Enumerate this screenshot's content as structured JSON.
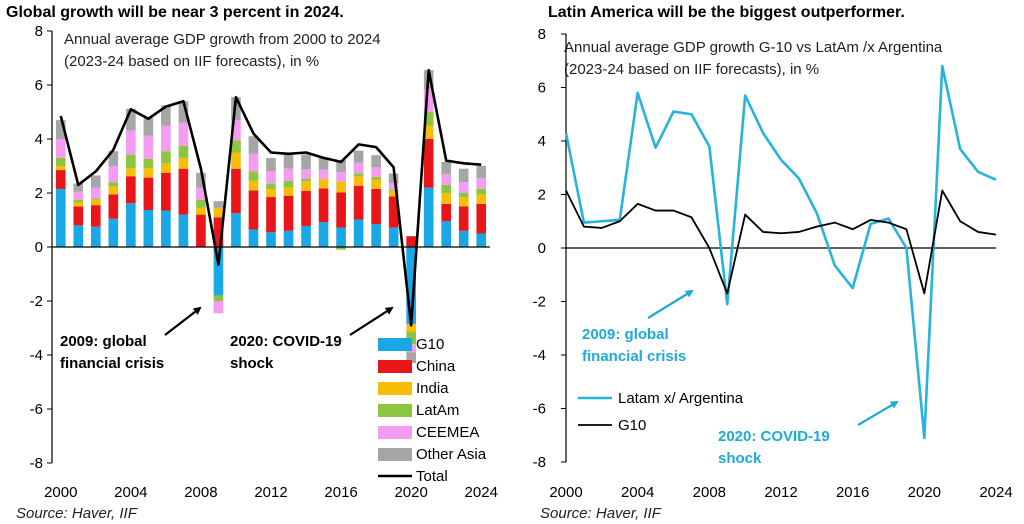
{
  "colors": {
    "g10": "#1AA7E6",
    "china": "#E8161A",
    "india": "#F7BE09",
    "latam": "#8CC63F",
    "ceemea": "#F39CF2",
    "other_asia": "#A6A6A6",
    "total": "#000000",
    "latam_line": "#27B3DB",
    "g10_line": "#000000",
    "right_annotation": "#1FA9D6"
  },
  "left": {
    "title": "Global growth will be near 3 percent in 2024.",
    "subtitle_1": "Annual average  GDP growth from 2000 to 2024",
    "subtitle_2": "(2023-24 based on IIF forecasts),  in %",
    "source": "Source: Haver, IIF",
    "annotation_gfc": [
      "2009: global",
      "financial crisis"
    ],
    "annotation_covid": [
      "2020: COVID-19",
      "shock"
    ]
  },
  "right": {
    "title": "Latin America will be the biggest outperformer.",
    "subtitle_1": "Annual average GDP growth G-10 vs LatAm /x Argentina",
    "subtitle_2": "(2023-24 based on IIF forecasts), in %",
    "source": "Source: Haver, IIF",
    "annotation_gfc": [
      "2009: global",
      "financial crisis"
    ],
    "annotation_covid": [
      "2020: COVID-19",
      "shock"
    ]
  },
  "chart_data": [
    {
      "type": "bar",
      "stacked": true,
      "title": "Global growth will be near 3 percent in 2024.",
      "x": [
        2000,
        2001,
        2002,
        2003,
        2004,
        2005,
        2006,
        2007,
        2008,
        2009,
        2010,
        2011,
        2012,
        2013,
        2014,
        2015,
        2016,
        2017,
        2018,
        2019,
        2020,
        2021,
        2022,
        2023,
        2024
      ],
      "x_tick_labels": [
        "2000",
        "2004",
        "2008",
        "2012",
        "2016",
        "2020",
        "2024"
      ],
      "y_ticks": [
        -8,
        -6,
        -4,
        -2,
        0,
        2,
        4,
        6,
        8
      ],
      "ylim": [
        -8,
        8
      ],
      "legend_position": "bottom-right",
      "series": [
        {
          "name": "G10",
          "color_key": "g10",
          "values": [
            2.15,
            0.8,
            0.75,
            1.05,
            1.62,
            1.37,
            1.35,
            1.2,
            0.0,
            -1.8,
            1.25,
            0.65,
            0.55,
            0.6,
            0.78,
            0.92,
            0.72,
            1.02,
            0.85,
            0.72,
            -2.85,
            2.2,
            0.95,
            0.6,
            0.5
          ]
        },
        {
          "name": "China",
          "color_key": "china",
          "values": [
            0.7,
            0.7,
            0.8,
            0.9,
            1.0,
            1.2,
            1.4,
            1.7,
            1.2,
            1.1,
            1.65,
            1.45,
            1.3,
            1.3,
            1.3,
            1.25,
            1.3,
            1.25,
            1.3,
            1.15,
            0.4,
            1.8,
            0.65,
            0.9,
            1.1
          ]
        },
        {
          "name": "India",
          "color_key": "india",
          "values": [
            0.15,
            0.15,
            0.2,
            0.3,
            0.3,
            0.35,
            0.35,
            0.4,
            0.25,
            0.35,
            0.6,
            0.35,
            0.3,
            0.3,
            0.35,
            0.35,
            0.4,
            0.35,
            0.35,
            0.2,
            -0.3,
            0.5,
            0.4,
            0.35,
            0.35
          ]
        },
        {
          "name": "LatAm",
          "color_key": "latam",
          "values": [
            0.3,
            0.1,
            0.05,
            0.15,
            0.5,
            0.35,
            0.45,
            0.45,
            0.3,
            -0.2,
            0.45,
            0.35,
            0.2,
            0.25,
            0.1,
            0.0,
            -0.1,
            0.1,
            0.1,
            0.05,
            -0.45,
            0.5,
            0.3,
            0.15,
            0.2
          ]
        },
        {
          "name": "CEEMEA",
          "color_key": "ceemea",
          "values": [
            0.7,
            0.3,
            0.4,
            0.6,
            0.9,
            0.85,
            0.95,
            0.85,
            0.45,
            -0.45,
            0.75,
            0.65,
            0.45,
            0.45,
            0.35,
            0.35,
            0.35,
            0.4,
            0.35,
            0.25,
            -0.3,
            0.85,
            0.4,
            0.4,
            0.4
          ]
        },
        {
          "name": "Other Asia",
          "color_key": "other_asia",
          "values": [
            0.7,
            0.3,
            0.45,
            0.55,
            0.8,
            0.65,
            0.75,
            0.8,
            0.55,
            0.25,
            0.85,
            0.65,
            0.5,
            0.55,
            0.55,
            0.45,
            0.45,
            0.45,
            0.45,
            0.35,
            -0.4,
            0.7,
            0.45,
            0.5,
            0.45
          ]
        },
        {
          "name": "Total",
          "type": "line",
          "color_key": "total",
          "values": [
            4.85,
            2.3,
            2.8,
            3.6,
            5.1,
            4.75,
            5.2,
            5.4,
            2.9,
            -0.65,
            5.55,
            4.2,
            3.5,
            3.45,
            3.5,
            3.3,
            3.15,
            3.8,
            3.7,
            2.95,
            -2.9,
            6.55,
            3.2,
            3.1,
            3.05
          ]
        }
      ]
    },
    {
      "type": "line",
      "title": "Latin America will be the biggest outperformer.",
      "x": [
        2000,
        2001,
        2002,
        2003,
        2004,
        2005,
        2006,
        2007,
        2008,
        2009,
        2010,
        2011,
        2012,
        2013,
        2014,
        2015,
        2016,
        2017,
        2018,
        2019,
        2020,
        2021,
        2022,
        2023,
        2024
      ],
      "x_tick_labels": [
        "2000",
        "2004",
        "2008",
        "2012",
        "2016",
        "2020",
        "2024"
      ],
      "y_ticks": [
        -8,
        -6,
        -4,
        -2,
        0,
        2,
        4,
        6,
        8
      ],
      "ylim": [
        -8,
        8
      ],
      "legend_position": "bottom-left",
      "series": [
        {
          "name": "Latam x/ Argentina",
          "color_key": "latam_line",
          "values": [
            4.3,
            0.95,
            1.0,
            1.05,
            5.8,
            3.75,
            5.1,
            5.0,
            3.8,
            -2.1,
            5.7,
            4.3,
            3.3,
            2.6,
            1.3,
            -0.65,
            -1.5,
            0.9,
            1.1,
            0.0,
            -7.1,
            6.8,
            3.7,
            2.85,
            2.55
          ]
        },
        {
          "name": "G10",
          "color_key": "g10_line",
          "values": [
            2.15,
            0.8,
            0.75,
            1.0,
            1.65,
            1.4,
            1.4,
            1.15,
            0.0,
            -1.7,
            1.25,
            0.6,
            0.55,
            0.6,
            0.8,
            0.95,
            0.7,
            1.05,
            0.95,
            0.7,
            -1.7,
            2.15,
            1.0,
            0.6,
            0.5
          ]
        }
      ]
    }
  ]
}
